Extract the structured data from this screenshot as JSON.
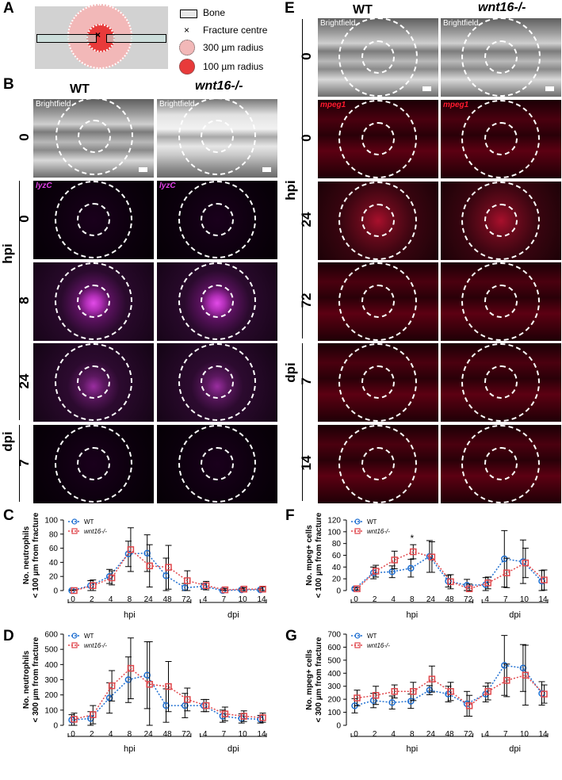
{
  "panels": {
    "A": "A",
    "B": "B",
    "C": "C",
    "D": "D",
    "E": "E",
    "F": "F",
    "G": "G"
  },
  "legendA": {
    "bone": "Bone",
    "fracture_centre": "Fracture centre",
    "r300": "300 µm radius",
    "r100": "100 µm radius"
  },
  "columns": {
    "wt": "WT",
    "wnt": "wnt16-/-"
  },
  "stain_labels": {
    "bf": "Brightfield",
    "lyz": "lyzC",
    "mpeg": "mpeg1"
  },
  "units": {
    "hpi": "hpi",
    "dpi": "dpi"
  },
  "B_rows": [
    "0",
    "0",
    "8",
    "24",
    "7"
  ],
  "E_rows": [
    "0",
    "0",
    "24",
    "72",
    "7",
    "14"
  ],
  "chart_data": [
    {
      "id": "C",
      "type": "line",
      "ylabel_line1": "No. neutrophils",
      "ylabel_line2": "< 100 µm from fracture",
      "ylim": [
        0,
        100
      ],
      "yticks": [
        0,
        20,
        40,
        60,
        80,
        100
      ],
      "categories": [
        "0",
        "2",
        "4",
        "8",
        "24",
        "48",
        "72",
        "4",
        "7",
        "10",
        "14"
      ],
      "series": [
        {
          "name": "WT",
          "color": "#1f6fd1",
          "values": [
            0,
            7,
            20,
            52,
            53,
            21,
            4,
            6,
            0,
            1,
            1
          ],
          "err": [
            1,
            7,
            10,
            18,
            26,
            25,
            6,
            4,
            1,
            2,
            2
          ]
        },
        {
          "name": "wnt16-/-",
          "color": "#e0474c",
          "values": [
            0,
            7,
            18,
            58,
            35,
            33,
            14,
            7,
            1,
            2,
            2
          ],
          "err": [
            1,
            8,
            10,
            31,
            30,
            31,
            14,
            6,
            2,
            2,
            3
          ]
        }
      ],
      "star": null
    },
    {
      "id": "D",
      "type": "line",
      "ylabel_line1": "No. neutrophils",
      "ylabel_line2": "< 300 µm from fracture",
      "ylim": [
        0,
        600
      ],
      "yticks": [
        0,
        100,
        200,
        300,
        400,
        500,
        600
      ],
      "categories": [
        "0",
        "2",
        "4",
        "8",
        "24",
        "48",
        "72",
        "4",
        "7",
        "10",
        "14"
      ],
      "series": [
        {
          "name": "WT",
          "color": "#1f6fd1",
          "values": [
            35,
            45,
            180,
            300,
            330,
            130,
            130,
            130,
            60,
            45,
            40
          ],
          "err": [
            35,
            45,
            100,
            150,
            220,
            110,
            80,
            40,
            40,
            30,
            25
          ]
        },
        {
          "name": "wnt16-/-",
          "color": "#e0474c",
          "values": [
            40,
            70,
            260,
            375,
            270,
            255,
            170,
            130,
            75,
            60,
            50
          ],
          "err": [
            40,
            60,
            100,
            200,
            280,
            165,
            75,
            40,
            45,
            35,
            30
          ]
        }
      ],
      "star": null
    },
    {
      "id": "F",
      "type": "line",
      "ylabel_line1": "No. mpeg+ cells",
      "ylabel_line2": "< 100 µm from fracture",
      "ylim": [
        0,
        120
      ],
      "yticks": [
        0,
        20,
        40,
        60,
        80,
        100,
        120
      ],
      "categories": [
        "0",
        "2",
        "4",
        "8",
        "24",
        "48",
        "72",
        "4",
        "7",
        "10",
        "14"
      ],
      "series": [
        {
          "name": "WT",
          "color": "#1f6fd1",
          "values": [
            3,
            30,
            32,
            38,
            58,
            16,
            9,
            10,
            54,
            49,
            16
          ],
          "err": [
            2,
            10,
            10,
            15,
            27,
            10,
            10,
            12,
            48,
            37,
            18
          ]
        },
        {
          "name": "wnt16-/-",
          "color": "#e0474c",
          "values": [
            3,
            33,
            52,
            66,
            57,
            15,
            3,
            13,
            30,
            47,
            18
          ],
          "err": [
            2,
            10,
            15,
            12,
            26,
            12,
            8,
            10,
            25,
            25,
            17
          ]
        }
      ],
      "star": {
        "index": 3,
        "text": "*"
      }
    },
    {
      "id": "G",
      "type": "line",
      "ylabel_line1": "No. mpeg+ cells",
      "ylabel_line2": "< 300 µm from fracture",
      "ylim": [
        0,
        700
      ],
      "yticks": [
        0,
        100,
        200,
        300,
        400,
        500,
        600,
        700
      ],
      "categories": [
        "0",
        "2",
        "4",
        "8",
        "24",
        "48",
        "72",
        "4",
        "7",
        "10",
        "14"
      ],
      "series": [
        {
          "name": "WT",
          "color": "#1f6fd1",
          "values": [
            150,
            190,
            175,
            185,
            270,
            240,
            165,
            240,
            460,
            440,
            245
          ],
          "err": [
            55,
            55,
            50,
            55,
            35,
            60,
            95,
            60,
            230,
            180,
            90
          ]
        },
        {
          "name": "wnt16-/-",
          "color": "#e0474c",
          "values": [
            210,
            230,
            260,
            260,
            355,
            260,
            150,
            260,
            345,
            385,
            240
          ],
          "err": [
            60,
            70,
            50,
            70,
            100,
            70,
            80,
            65,
            125,
            230,
            70
          ]
        }
      ],
      "star": null
    }
  ],
  "chart_axis_groups": {
    "hpi": "hpi",
    "dpi": "dpi"
  }
}
